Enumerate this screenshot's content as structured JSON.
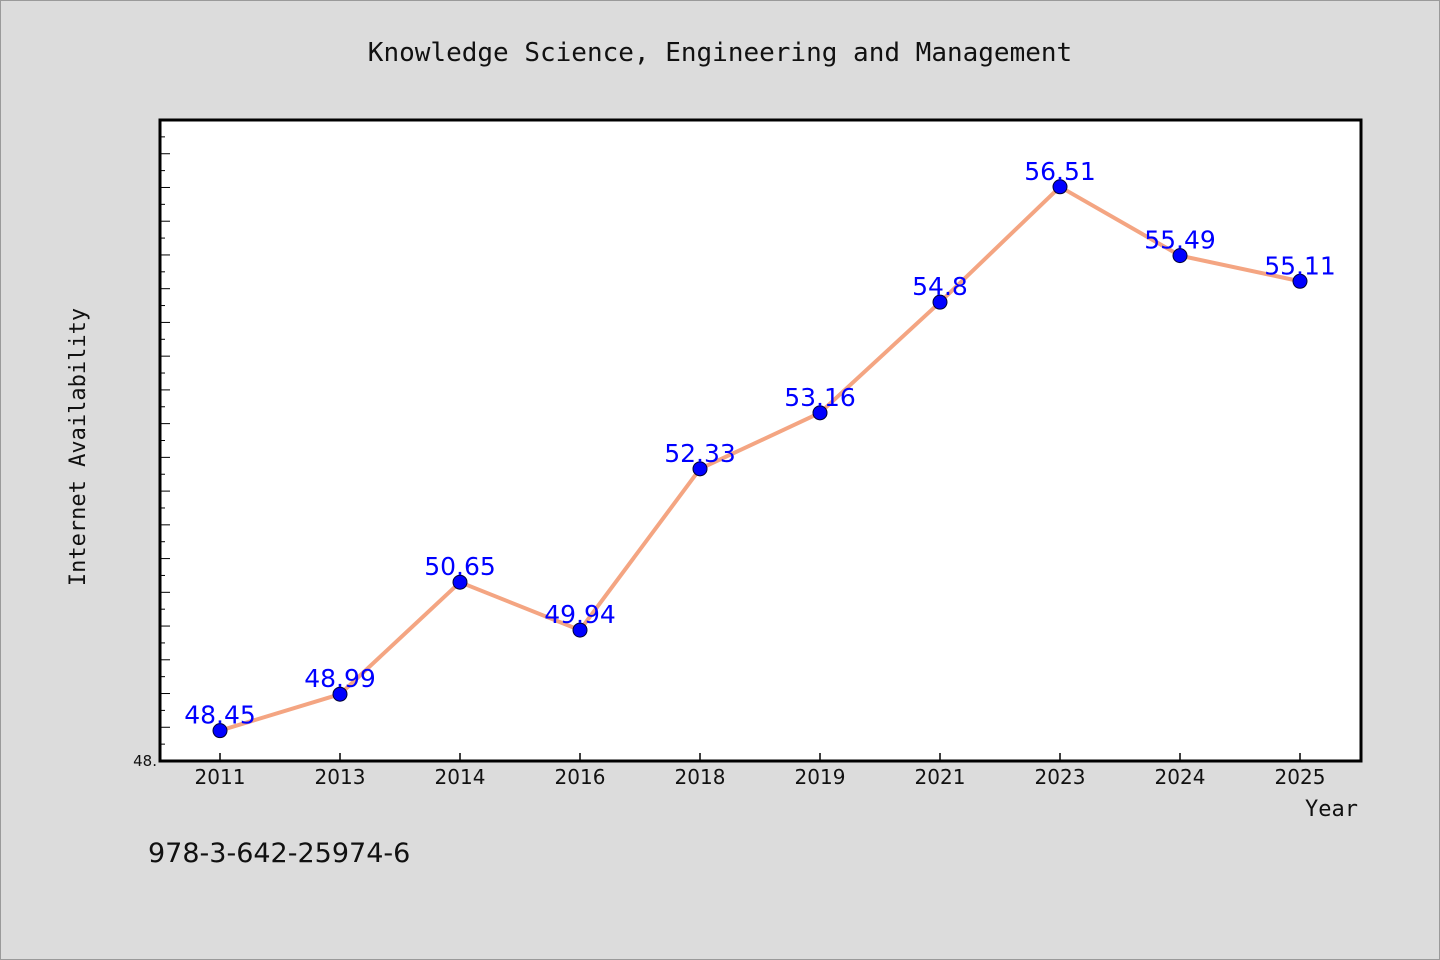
{
  "chart_data": {
    "type": "line",
    "title": "Knowledge Science, Engineering and Management",
    "xlabel": "Year",
    "ylabel": "Internet Availability",
    "categories": [
      "2011",
      "2013",
      "2014",
      "2016",
      "2018",
      "2019",
      "2021",
      "2023",
      "2024",
      "2025"
    ],
    "series": [
      {
        "values": [
          48.45,
          48.99,
          50.65,
          49.94,
          52.33,
          53.16,
          54.8,
          56.51,
          55.49,
          55.11
        ],
        "data_labels": [
          "48.45",
          "48.99",
          "50.65",
          "49.94",
          "52.33",
          "53.16",
          "54.8",
          "56.51",
          "55.49",
          "55.11"
        ],
        "line_color": "#f4a582",
        "marker_color": "#0000ff"
      }
    ],
    "ylim": [
      48,
      57.5
    ],
    "yticks": [
      {
        "value": 48,
        "label": "48."
      }
    ],
    "grid": false,
    "legend": "none"
  },
  "footer": {
    "isbn": "978-3-642-25974-6"
  }
}
